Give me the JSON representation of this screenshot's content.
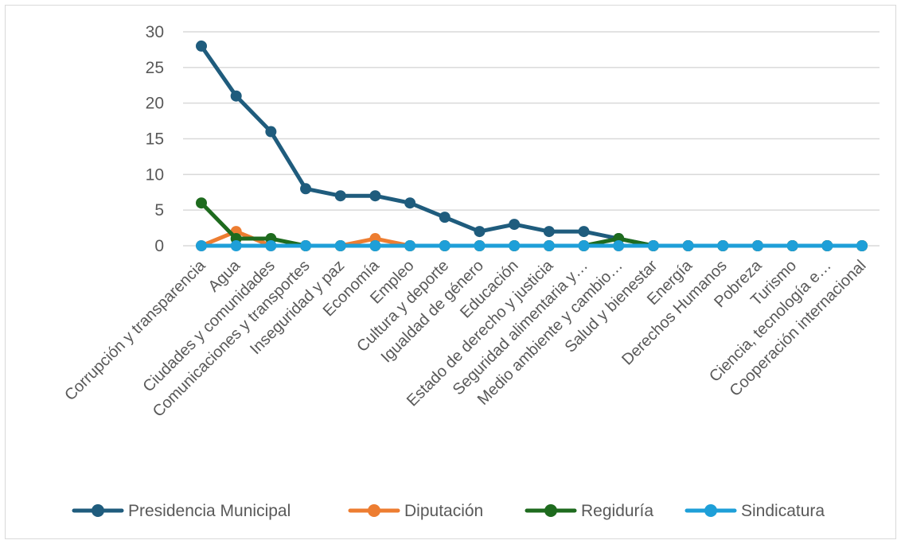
{
  "chart_data": {
    "type": "line",
    "title": "",
    "xlabel": "",
    "ylabel": "",
    "ylim": [
      0,
      30
    ],
    "yticks": [
      0,
      5,
      10,
      15,
      20,
      25,
      30
    ],
    "grid": "horizontal",
    "legend_position": "bottom",
    "categories": [
      "Corrupción y transparencia",
      "Agua",
      "Ciudades y comunidades",
      "Comunicaciones y transportes",
      "Inseguridad y paz",
      "Economía",
      "Empleo",
      "Cultura y deporte",
      "Igualdad de género",
      "Educación",
      "Estado de derecho y justicia",
      "Seguridad alimentaria y…",
      "Medio ambiente y cambio…",
      "Salud y bienestar",
      "Energía",
      "Derechos Humanos",
      "Pobreza",
      "Turismo",
      "Ciencia, tecnología e…",
      "Cooperación internacional"
    ],
    "series": [
      {
        "name": "Presidencia Municipal",
        "color": "#1f5c7d",
        "values": [
          28,
          21,
          16,
          8,
          7,
          7,
          6,
          4,
          2,
          3,
          2,
          2,
          1,
          0,
          0,
          0,
          0,
          0,
          0,
          0
        ]
      },
      {
        "name": "Diputación",
        "color": "#ed7d31",
        "values": [
          0,
          2,
          0,
          0,
          0,
          1,
          0,
          0,
          0,
          0,
          0,
          0,
          0,
          0,
          0,
          0,
          0,
          0,
          0,
          0
        ]
      },
      {
        "name": "Regiduría",
        "color": "#1e6b1e",
        "values": [
          6,
          1,
          1,
          0,
          0,
          0,
          0,
          0,
          0,
          0,
          0,
          0,
          1,
          0,
          0,
          0,
          0,
          0,
          0,
          0
        ]
      },
      {
        "name": "Sindicatura",
        "color": "#1e9fd8",
        "values": [
          0,
          0,
          0,
          0,
          0,
          0,
          0,
          0,
          0,
          0,
          0,
          0,
          0,
          0,
          0,
          0,
          0,
          0,
          0,
          0
        ]
      }
    ]
  }
}
